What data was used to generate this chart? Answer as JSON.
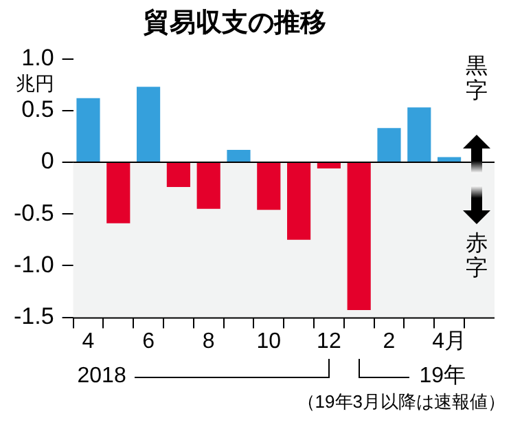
{
  "chart_data": {
    "type": "bar",
    "title": "貿易収支の推移",
    "ylabel": "兆円",
    "categories": [
      "4",
      null,
      "6",
      null,
      "8",
      null,
      "10",
      null,
      "12",
      null,
      "2",
      null,
      "4月"
    ],
    "values": [
      0.62,
      -0.59,
      0.73,
      -0.24,
      -0.45,
      0.12,
      -0.46,
      -0.75,
      -0.06,
      -1.43,
      0.33,
      0.53,
      0.05
    ],
    "colors": [
      "#35a0dc",
      "#e4002b",
      "#35a0dc",
      "#e4002b",
      "#e4002b",
      "#35a0dc",
      "#e4002b",
      "#e4002b",
      "#e4002b",
      "#e4002b",
      "#35a0dc",
      "#35a0dc",
      "#35a0dc"
    ],
    "ylim": [
      -1.5,
      1.0
    ],
    "yticks": [
      {
        "value": 1.0,
        "label": "1.0"
      },
      0.5,
      0,
      -0.5,
      {
        "value": -1.0,
        "label": "-1.0"
      },
      -1.5
    ],
    "grid": false,
    "legend": false,
    "bands": [
      {
        "axis": "y",
        "from": -1.5,
        "to": 0,
        "color": "#f2f3f3"
      }
    ],
    "ref_lines": [
      {
        "axis": "y",
        "value": 0,
        "color": "#000000"
      }
    ],
    "annotations": [
      "2018",
      "19年",
      "（19年3月以降は速報値）",
      "黒字",
      "赤字"
    ]
  }
}
